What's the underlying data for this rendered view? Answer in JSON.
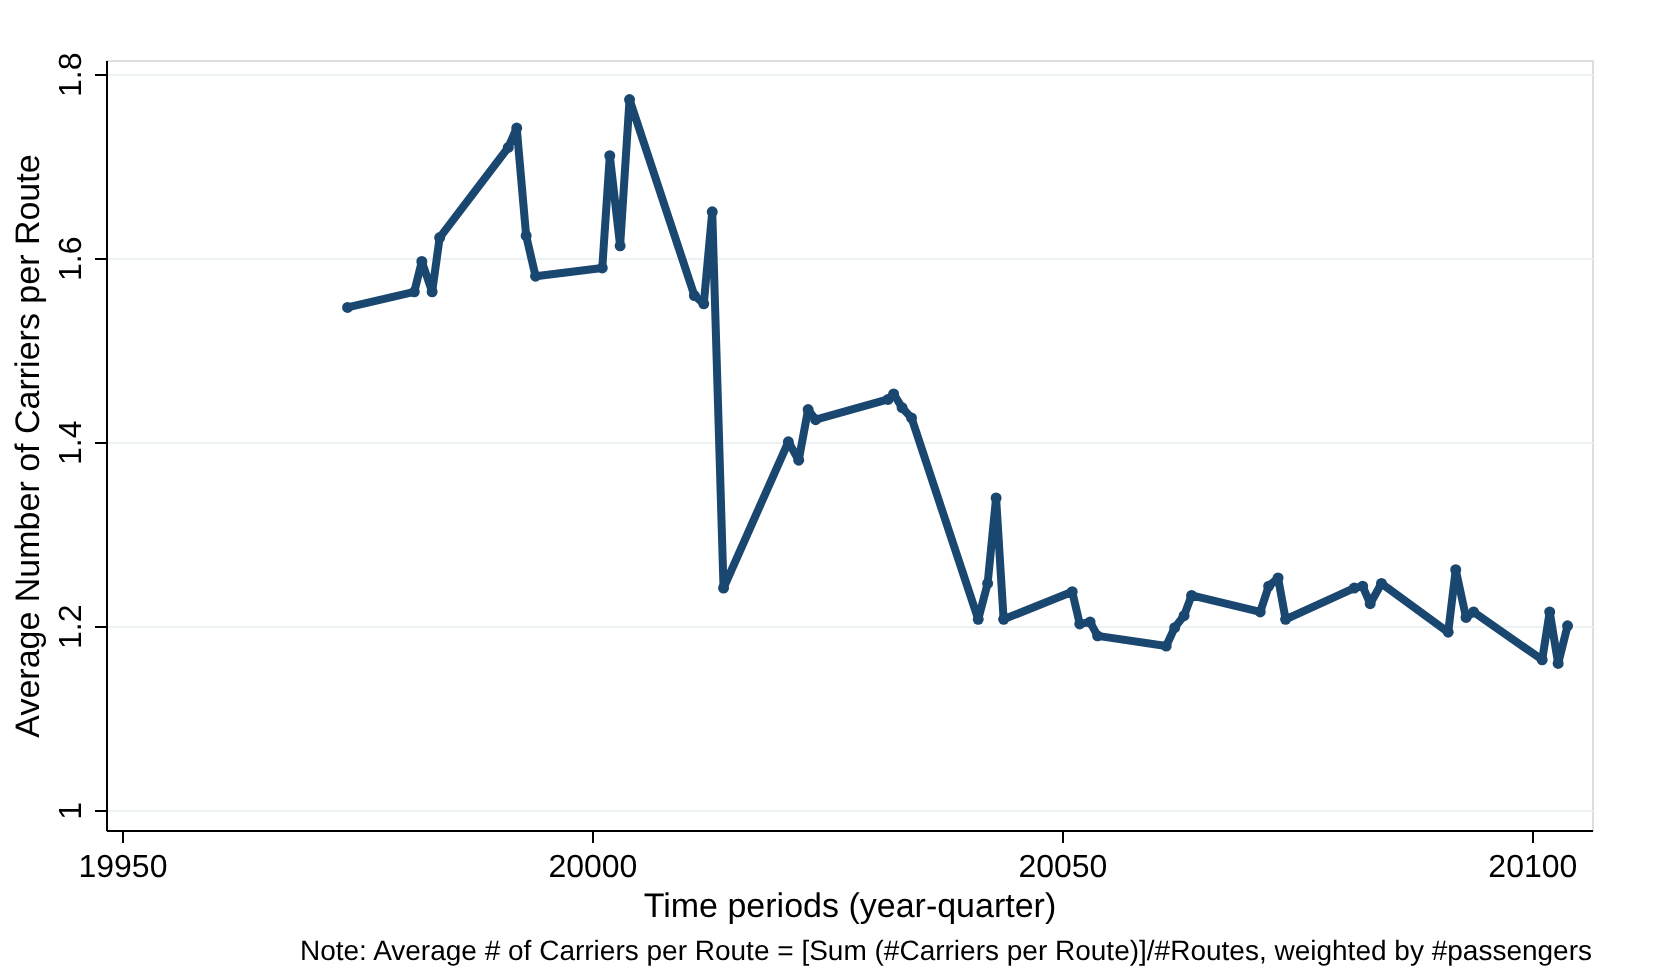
{
  "chart_data": {
    "type": "line",
    "xlabel": "Time periods (year-quarter)",
    "ylabel": "Average Number of Carriers per Route",
    "annotations": [
      "Note: Average # of Carriers per Route = [Sum (#Carriers per Route)]/#Routes, weighted by #passengers"
    ],
    "x": [
      19974,
      19981.1,
      19981.9,
      19983,
      19983.8,
      19991.1,
      19992,
      19993,
      19994,
      20001.1,
      20001.9,
      20003,
      20004,
      20010.9,
      20011.9,
      20012.8,
      20014,
      20020.9,
      20022,
      20023,
      20023.8,
      20031.5,
      20032.1,
      20033,
      20034,
      20041.1,
      20042.1,
      20043,
      20043.8,
      20051.1,
      20051.9,
      20053,
      20053.8,
      20061.1,
      20062,
      20063,
      20063.8,
      20071.1,
      20072,
      20073,
      20073.8,
      20081.1,
      20082,
      20082.8,
      20084,
      20091.1,
      20091.9,
      20093,
      20093.8,
      20101.1,
      20101.9,
      20102.8,
      20103.8
    ],
    "series": [
      {
        "color": "#1a476f",
        "values": [
          1.546,
          1.563,
          1.596,
          1.563,
          1.622,
          1.72,
          1.741,
          1.624,
          1.58,
          1.589,
          1.711,
          1.613,
          1.772,
          1.559,
          1.55,
          1.65,
          1.241,
          1.4,
          1.38,
          1.435,
          1.424,
          1.446,
          1.452,
          1.437,
          1.426,
          1.207,
          1.246,
          1.339,
          1.207,
          1.237,
          1.202,
          1.204,
          1.189,
          1.178,
          1.198,
          1.211,
          1.233,
          1.215,
          1.243,
          1.252,
          1.207,
          1.241,
          1.243,
          1.224,
          1.246,
          1.193,
          1.261,
          1.209,
          1.215,
          1.163,
          1.215,
          1.159,
          1.2
        ]
      }
    ],
    "xlim": [
      19948.3,
      20106.4
    ],
    "xticks": [
      19950,
      20000,
      20050,
      20100
    ],
    "ylim": [
      0.978,
      1.815
    ],
    "yticks": [
      1,
      1.2,
      1.4,
      1.6,
      1.8
    ],
    "grid": "y",
    "marker": "circle",
    "line_style": "solid"
  }
}
